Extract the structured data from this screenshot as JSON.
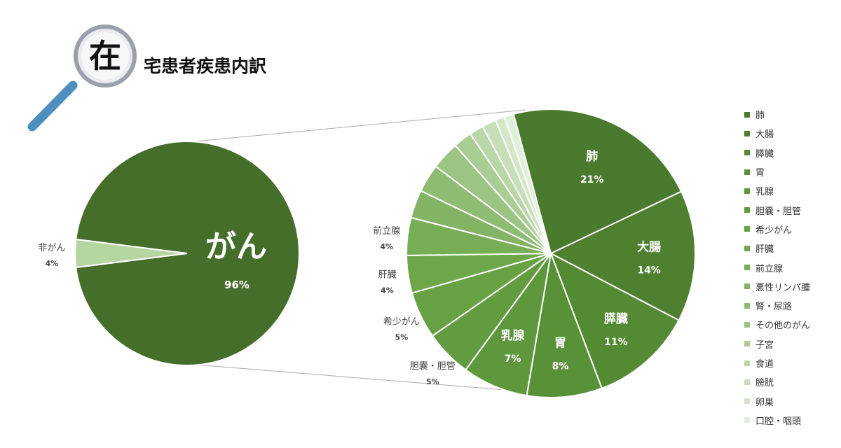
{
  "header": {
    "badge_char": "在",
    "title": "宅患者疾患内訳"
  },
  "chart_data": [
    {
      "type": "pie",
      "slices": [
        {
          "label": "がん",
          "value": 96,
          "value_label": "96%",
          "color": "#466e2b"
        },
        {
          "label": "非がん",
          "value": 4,
          "value_label": "4%",
          "color": "#b5d6a1"
        }
      ]
    },
    {
      "type": "pie",
      "legend_position": "right",
      "slices": [
        {
          "label": "肺",
          "value": 21,
          "value_label": "21%",
          "color": "#4a7a2e"
        },
        {
          "label": "大腸",
          "value": 14,
          "value_label": "14%",
          "color": "#4e8030"
        },
        {
          "label": "膵臓",
          "value": 11,
          "value_label": "11%",
          "color": "#548a34"
        },
        {
          "label": "胃",
          "value": 8,
          "value_label": "8%",
          "color": "#599138"
        },
        {
          "label": "乳腺",
          "value": 7,
          "value_label": "7%",
          "color": "#5e973c"
        },
        {
          "label": "胆嚢・胆管",
          "value": 5,
          "value_label": "5%",
          "color": "#639c40"
        },
        {
          "label": "希少がん",
          "value": 5,
          "value_label": "5%",
          "color": "#68a144"
        },
        {
          "label": "肝臓",
          "value": 4,
          "value_label": "4%",
          "color": "#6ea74a"
        },
        {
          "label": "前立腺",
          "value": 4,
          "value_label": "4%",
          "color": "#77ad55"
        },
        {
          "label": "悪性リンパ腫",
          "value": 3,
          "value_label": "",
          "color": "#82b463"
        },
        {
          "label": "腎・尿路",
          "value": 3,
          "value_label": "",
          "color": "#8fbc73"
        },
        {
          "label": "その他のがん",
          "value": 3,
          "value_label": "",
          "color": "#9cc584"
        },
        {
          "label": "子宮",
          "value": 2,
          "value_label": "",
          "color": "#aacd95"
        },
        {
          "label": "食道",
          "value": 1.5,
          "value_label": "",
          "color": "#b8d6a7"
        },
        {
          "label": "膀胱",
          "value": 1.5,
          "value_label": "",
          "color": "#c6dfb9"
        },
        {
          "label": "卵巣",
          "value": 1,
          "value_label": "",
          "color": "#d3e7c9"
        },
        {
          "label": "口腔・咽頭",
          "value": 1,
          "value_label": "",
          "color": "#e0efd9"
        }
      ]
    }
  ]
}
